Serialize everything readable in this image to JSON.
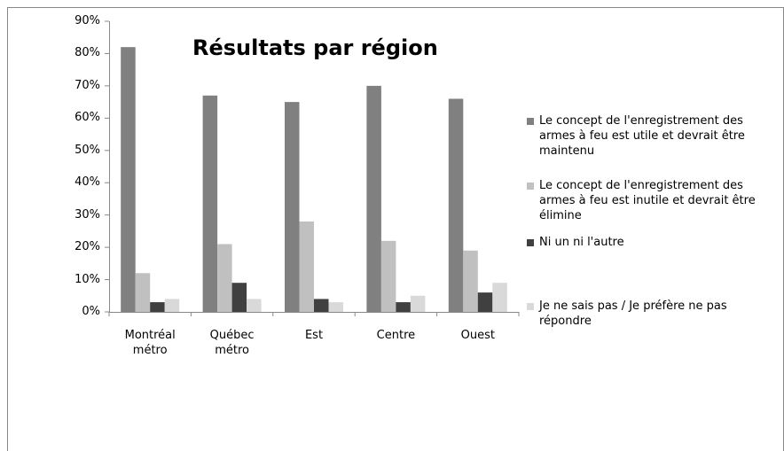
{
  "chart_data": {
    "type": "bar",
    "title": "Résultats par région",
    "categories": [
      "Montréal métro",
      "Québec métro",
      "Est",
      "Centre",
      "Ouest"
    ],
    "series": [
      {
        "name": "Le concept de l'enregistrement des armes à feu est utile et devrait être maintenu",
        "color": "#808080",
        "values": [
          82,
          67,
          65,
          70,
          66
        ]
      },
      {
        "name": "Le concept de l'enregistrement des armes à feu est inutile et devrait être élimine",
        "color": "#c0c0c0",
        "values": [
          12,
          21,
          28,
          22,
          19
        ]
      },
      {
        "name": "Ni un ni l'autre",
        "color": "#404040",
        "values": [
          3,
          9,
          4,
          3,
          6
        ]
      },
      {
        "name": "Je ne sais pas / Je préfère ne pas répondre",
        "color": "#d9d9d9",
        "values": [
          4,
          4,
          3,
          5,
          9
        ]
      }
    ],
    "ylim": [
      0,
      90
    ],
    "yticks": [
      {
        "value": 0,
        "label": "0%"
      },
      {
        "value": 10,
        "label": "10%"
      },
      {
        "value": 20,
        "label": "20%"
      },
      {
        "value": 30,
        "label": "30%"
      },
      {
        "value": 40,
        "label": "40%"
      },
      {
        "value": 50,
        "label": "50%"
      },
      {
        "value": 60,
        "label": "60%"
      },
      {
        "value": 70,
        "label": "70%"
      },
      {
        "value": 80,
        "label": "80%"
      },
      {
        "value": 90,
        "label": "90%"
      }
    ],
    "legend": "right"
  }
}
